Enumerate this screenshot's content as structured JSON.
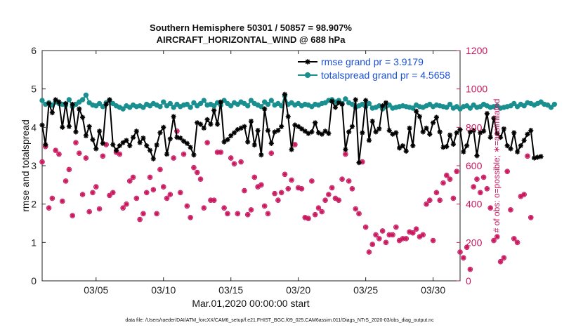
{
  "chart_data": {
    "type": "line",
    "title_line1": "Southern Hemisphere 50301 / 50857 = 98.907%",
    "title_line2": "AIRCRAFT_HORIZONTAL_WIND @ 688 hPa",
    "xlabel": "Mar.01,2020 00:00:00 start",
    "ylabel_left": "rmse and totalspread",
    "ylabel_right": "# of obs: o=possible; ∗=assimilated",
    "footer": "data file: /Users/raeder/DAI/ATM_forcXX/CAM6_setup/f.e21.FHIST_BGC.f09_025.CAM6assim.011/Diags_NTrS_2020-03/obs_diag_output.nc",
    "x_tick_days": [
      5,
      10,
      15,
      20,
      25,
      30
    ],
    "x_tick_labels": [
      "03/05",
      "03/10",
      "03/15",
      "03/20",
      "03/25",
      "03/30"
    ],
    "xlim_days": [
      1,
      32
    ],
    "ylim_left": [
      0,
      6
    ],
    "y_ticks_left": [
      0,
      1,
      2,
      3,
      4,
      5,
      6
    ],
    "ylim_right": [
      0,
      1200
    ],
    "y_ticks_right": [
      0,
      200,
      400,
      600,
      800,
      1000,
      1200
    ],
    "colors": {
      "rmse": "#000000",
      "spread": "#1a8f8f",
      "obs": "#c8175e",
      "legend_text": "#1a4fd6"
    },
    "series": [
      {
        "name": "rmse grand pr = 3.9179",
        "axis": "left",
        "x_start_day": 1.0,
        "x_step_day": 0.25,
        "values": [
          4.06,
          3.55,
          4.62,
          4.38,
          4.72,
          4.66,
          4.0,
          4.62,
          4.02,
          4.6,
          3.88,
          4.48,
          4.26,
          3.78,
          4.02,
          3.68,
          3.44,
          3.9,
          3.58,
          4.6,
          4.72,
          3.55,
          3.4,
          3.52,
          3.6,
          3.66,
          3.52,
          3.74,
          3.9,
          3.6,
          3.72,
          3.52,
          3.4,
          3.18,
          3.54,
          3.86,
          4.0,
          3.3,
          3.7,
          4.28,
          3.74,
          3.72,
          3.64,
          3.58,
          3.48,
          3.28,
          4.12,
          4.08,
          3.98,
          4.2,
          4.08,
          4.44,
          4.08,
          4.66,
          3.62,
          3.68,
          3.78,
          3.86,
          3.94,
          3.98,
          4.02,
          3.62,
          4.16,
          3.54,
          3.92,
          3.28,
          4.48,
          3.92,
          3.58,
          3.88,
          3.92,
          4.02,
          4.86,
          4.28,
          3.42,
          4.06,
          4.02,
          3.96,
          3.9,
          3.84,
          3.88,
          4.12,
          3.86,
          3.82,
          3.9,
          3.84,
          4.68,
          4.52,
          4.64,
          4.6,
          3.42,
          3.88,
          4.02,
          4.72,
          3.08,
          3.86,
          4.7,
          3.66,
          4.16,
          3.88,
          3.96,
          4.56,
          4.64,
          3.92,
          3.82,
          3.86,
          3.46,
          3.52,
          3.38,
          3.98,
          3.52,
          4.42,
          4.28,
          3.88,
          3.98,
          3.82,
          4.12,
          4.26,
          3.88,
          3.48,
          3.5,
          3.8,
          3.56,
          3.86,
          3.94,
          3.36,
          3.52,
          3.88,
          3.92,
          3.26,
          3.86,
          3.9,
          4.36,
          3.74,
          4.24,
          3.84,
          3.74,
          3.96,
          3.52,
          3.44,
          3.86,
          3.36,
          3.52,
          3.66,
          3.82,
          3.92,
          3.2,
          3.22,
          3.24
        ]
      },
      {
        "name": "totalspread grand pr = 4.5658",
        "axis": "left",
        "x_start_day": 1.0,
        "x_step_day": 0.25,
        "values": [
          4.7,
          4.6,
          4.64,
          4.58,
          4.66,
          4.62,
          4.6,
          4.58,
          4.72,
          4.54,
          4.6,
          4.66,
          4.72,
          4.84,
          4.64,
          4.58,
          4.56,
          4.62,
          4.54,
          4.64,
          4.7,
          4.62,
          4.56,
          4.52,
          4.48,
          4.56,
          4.52,
          4.58,
          4.54,
          4.56,
          4.52,
          4.6,
          4.56,
          4.62,
          4.58,
          4.54,
          4.66,
          4.56,
          4.62,
          4.52,
          4.6,
          4.54,
          4.58,
          4.6,
          4.52,
          4.64,
          4.56,
          4.62,
          4.7,
          4.58,
          4.6,
          4.56,
          4.64,
          4.58,
          4.7,
          4.62,
          4.56,
          4.64,
          4.6,
          4.66,
          4.62,
          4.56,
          4.7,
          4.62,
          4.58,
          4.54,
          4.66,
          4.6,
          4.7,
          4.58,
          4.62,
          4.56,
          4.82,
          4.6,
          4.64,
          4.58,
          4.62,
          4.56,
          4.6,
          4.58,
          4.54,
          4.6,
          4.58,
          4.62,
          4.64,
          4.7,
          4.72,
          4.66,
          4.7,
          4.62,
          4.74,
          4.64,
          4.6,
          4.52,
          4.56,
          4.6,
          4.54,
          4.62,
          4.5,
          4.52,
          4.56,
          4.48,
          4.54,
          4.58,
          4.5,
          4.52,
          4.54,
          4.56,
          4.54,
          4.52,
          4.5,
          4.58,
          4.54,
          4.52,
          4.56,
          4.6,
          4.54,
          4.58,
          4.56,
          4.54,
          4.52,
          4.6,
          4.5,
          4.54,
          4.48,
          4.54,
          4.56,
          4.5,
          4.58,
          4.52,
          4.54,
          4.6,
          4.56,
          4.52,
          4.54,
          4.56,
          4.5,
          4.52,
          4.54,
          4.56,
          4.62,
          4.54,
          4.6,
          4.56,
          4.64,
          4.62,
          4.58,
          4.62,
          4.66,
          4.6,
          4.58,
          4.52,
          4.6
        ]
      },
      {
        "name": "obs possible / assimilated",
        "axis": "right",
        "x_start_day": 1.0,
        "x_step_day": 0.25,
        "values": [
          620,
          700,
          380,
          430,
          680,
          660,
          415,
          520,
          580,
          340,
          720,
          665,
          450,
          640,
          360,
          460,
          490,
          375,
          650,
          710,
          445,
          460,
          670,
          660,
          380,
          400,
          520,
          540,
          430,
          320,
          350,
          460,
          540,
          475,
          350,
          580,
          490,
          430,
          450,
          640,
          780,
          460,
          660,
          390,
          330,
          590,
          565,
          530,
          380,
          720,
          420,
          420,
          670,
          670,
          380,
          350,
          640,
          610,
          350,
          620,
          470,
          345,
          370,
          540,
          490,
          500,
          390,
          350,
          665,
          455,
          420,
          460,
          555,
          480,
          525,
          710,
          485,
          480,
          330,
          325,
          520,
          345,
          380,
          360,
          420,
          450,
          485,
          430,
          420,
          530,
          660,
          520,
          480,
          375,
          350,
          620,
          280,
          150,
          190,
          240,
          220,
          260,
          200,
          240,
          240,
          280,
          210,
          220,
          220,
          255,
          250,
          270,
          230,
          240,
          400,
          420,
          210,
          460,
          420,
          510,
          550,
          530,
          430,
          570,
          150,
          120,
          175,
          60,
          490,
          530,
          460,
          540,
          480,
          380,
          210,
          230,
          100,
          120,
          570,
          370,
          220,
          200,
          440,
          450,
          650,
          330
        ]
      }
    ],
    "legend": [
      {
        "label": "rmse grand pr = 3.9179",
        "marker": "asterisk",
        "color": "#000000"
      },
      {
        "label": "totalspread grand pr = 4.5658",
        "marker": "circle",
        "color": "#1a8f8f"
      }
    ],
    "legend_position": "top-right",
    "grid": false
  }
}
